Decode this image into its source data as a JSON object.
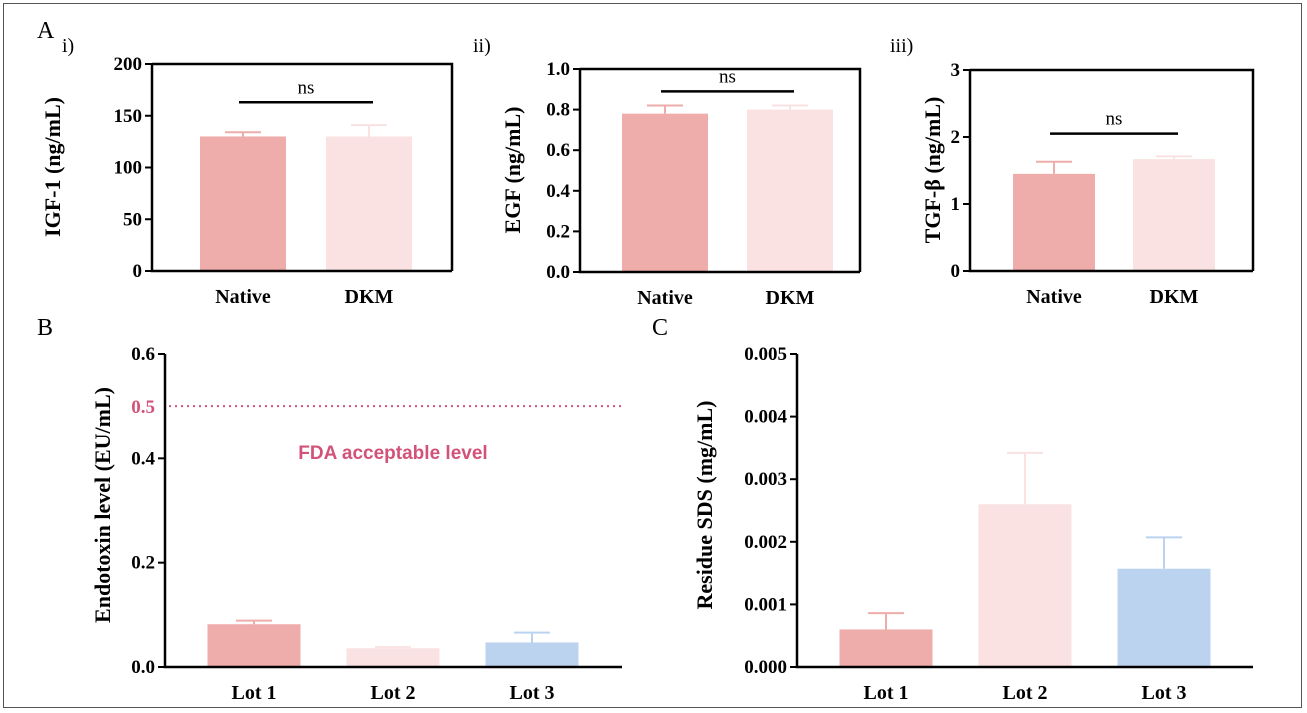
{
  "figure": {
    "panel_labels": {
      "A": "A",
      "B": "B",
      "C": "C"
    },
    "sub_labels": {
      "i": "i)",
      "ii": "ii)",
      "iii": "iii)"
    }
  },
  "colors": {
    "native": "#eeadab",
    "dkm": "#fae2e2",
    "lot1": "#eeadab",
    "lot2": "#fae2e2",
    "lot3": "#bcd3ef",
    "reference": "#d2537a",
    "axis": "#000000"
  },
  "chart_data": [
    {
      "id": "Ai",
      "type": "bar",
      "ylabel": "IGF-1 (ng/mL)",
      "categories": [
        "Native",
        "DKM"
      ],
      "values": [
        130,
        130
      ],
      "errors": [
        4,
        11
      ],
      "ylim": [
        0,
        200
      ],
      "yticks": [
        0,
        50,
        100,
        150,
        200
      ],
      "ytick_labels": [
        "0",
        "50",
        "100",
        "150",
        "200"
      ],
      "significance": {
        "label": "ns",
        "y": 163
      },
      "bar_colors": [
        "native",
        "dkm"
      ]
    },
    {
      "id": "Aii",
      "type": "bar",
      "ylabel": "EGF (ng/mL)",
      "categories": [
        "Native",
        "DKM"
      ],
      "values": [
        0.78,
        0.8
      ],
      "errors": [
        0.04,
        0.02
      ],
      "ylim": [
        0,
        1.0
      ],
      "yticks": [
        0,
        0.2,
        0.4,
        0.6,
        0.8,
        1.0
      ],
      "ytick_labels": [
        "0.0",
        "0.2",
        "0.4",
        "0.6",
        "0.8",
        "1.0"
      ],
      "significance": {
        "label": "ns",
        "y": 0.89
      },
      "bar_colors": [
        "native",
        "dkm"
      ]
    },
    {
      "id": "Aiii",
      "type": "bar",
      "ylabel": "TGF-β (ng/mL)",
      "categories": [
        "Native",
        "DKM"
      ],
      "values": [
        1.45,
        1.67
      ],
      "errors": [
        0.18,
        0.04
      ],
      "ylim": [
        0,
        3
      ],
      "yticks": [
        0,
        1,
        2,
        3
      ],
      "ytick_labels": [
        "0",
        "1",
        "2",
        "3"
      ],
      "significance": {
        "label": "ns",
        "y": 2.05
      },
      "bar_colors": [
        "native",
        "dkm"
      ]
    },
    {
      "id": "B",
      "type": "bar",
      "ylabel": "Endotoxin level (EU/mL)",
      "categories": [
        "Lot 1",
        "Lot 2",
        "Lot 3"
      ],
      "values": [
        0.082,
        0.036,
        0.047
      ],
      "errors": [
        0.007,
        0.002,
        0.019
      ],
      "ylim": [
        0,
        0.6
      ],
      "yticks": [
        0,
        0.2,
        0.4,
        0.6
      ],
      "ytick_labels": [
        "0.0",
        "0.2",
        "0.4",
        "0.6"
      ],
      "reference": {
        "value": 0.5,
        "value_label": "0.5",
        "label": "FDA acceptable level"
      },
      "bar_colors": [
        "lot1",
        "lot2",
        "lot3"
      ]
    },
    {
      "id": "C",
      "type": "bar",
      "ylabel": "Residue SDS (mg/mL)",
      "categories": [
        "Lot 1",
        "Lot 2",
        "Lot 3"
      ],
      "values": [
        0.0006,
        0.0026,
        0.00157
      ],
      "errors": [
        0.00026,
        0.00082,
        0.0005
      ],
      "ylim": [
        0,
        0.005
      ],
      "yticks": [
        0,
        0.001,
        0.002,
        0.003,
        0.004,
        0.005
      ],
      "ytick_labels": [
        "0.000",
        "0.001",
        "0.002",
        "0.003",
        "0.004",
        "0.005"
      ],
      "bar_colors": [
        "lot1",
        "lot2",
        "lot3"
      ]
    }
  ]
}
